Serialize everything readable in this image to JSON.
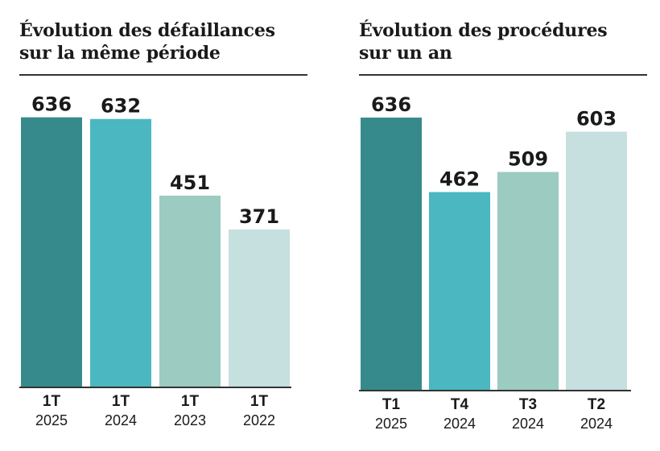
{
  "chart_data": [
    {
      "type": "bar",
      "title": [
        "Évolution des défaillances",
        "sur la même période"
      ],
      "categories": [
        {
          "label": "1T",
          "sublabel": "2025"
        },
        {
          "label": "1T",
          "sublabel": "2024"
        },
        {
          "label": "1T",
          "sublabel": "2023"
        },
        {
          "label": "1T",
          "sublabel": "2022"
        }
      ],
      "values": [
        636,
        632,
        451,
        371
      ],
      "colors": [
        "#368a8c",
        "#4ab7c1",
        "#9ccbc1",
        "#c6dfdf"
      ],
      "ylim": [
        0,
        700
      ],
      "grid": false,
      "xlabel": "",
      "ylabel": ""
    },
    {
      "type": "bar",
      "title": [
        "Évolution des procédures",
        "sur un an"
      ],
      "categories": [
        {
          "label": "T1",
          "sublabel": "2025"
        },
        {
          "label": "T4",
          "sublabel": "2024"
        },
        {
          "label": "T3",
          "sublabel": "2024"
        },
        {
          "label": "T2",
          "sublabel": "2024"
        }
      ],
      "values": [
        636,
        462,
        509,
        603
      ],
      "colors": [
        "#368a8c",
        "#4ab7c1",
        "#9ccbc1",
        "#c6dfdf"
      ],
      "ylim": [
        0,
        700
      ],
      "grid": false,
      "xlabel": "",
      "ylabel": ""
    }
  ]
}
